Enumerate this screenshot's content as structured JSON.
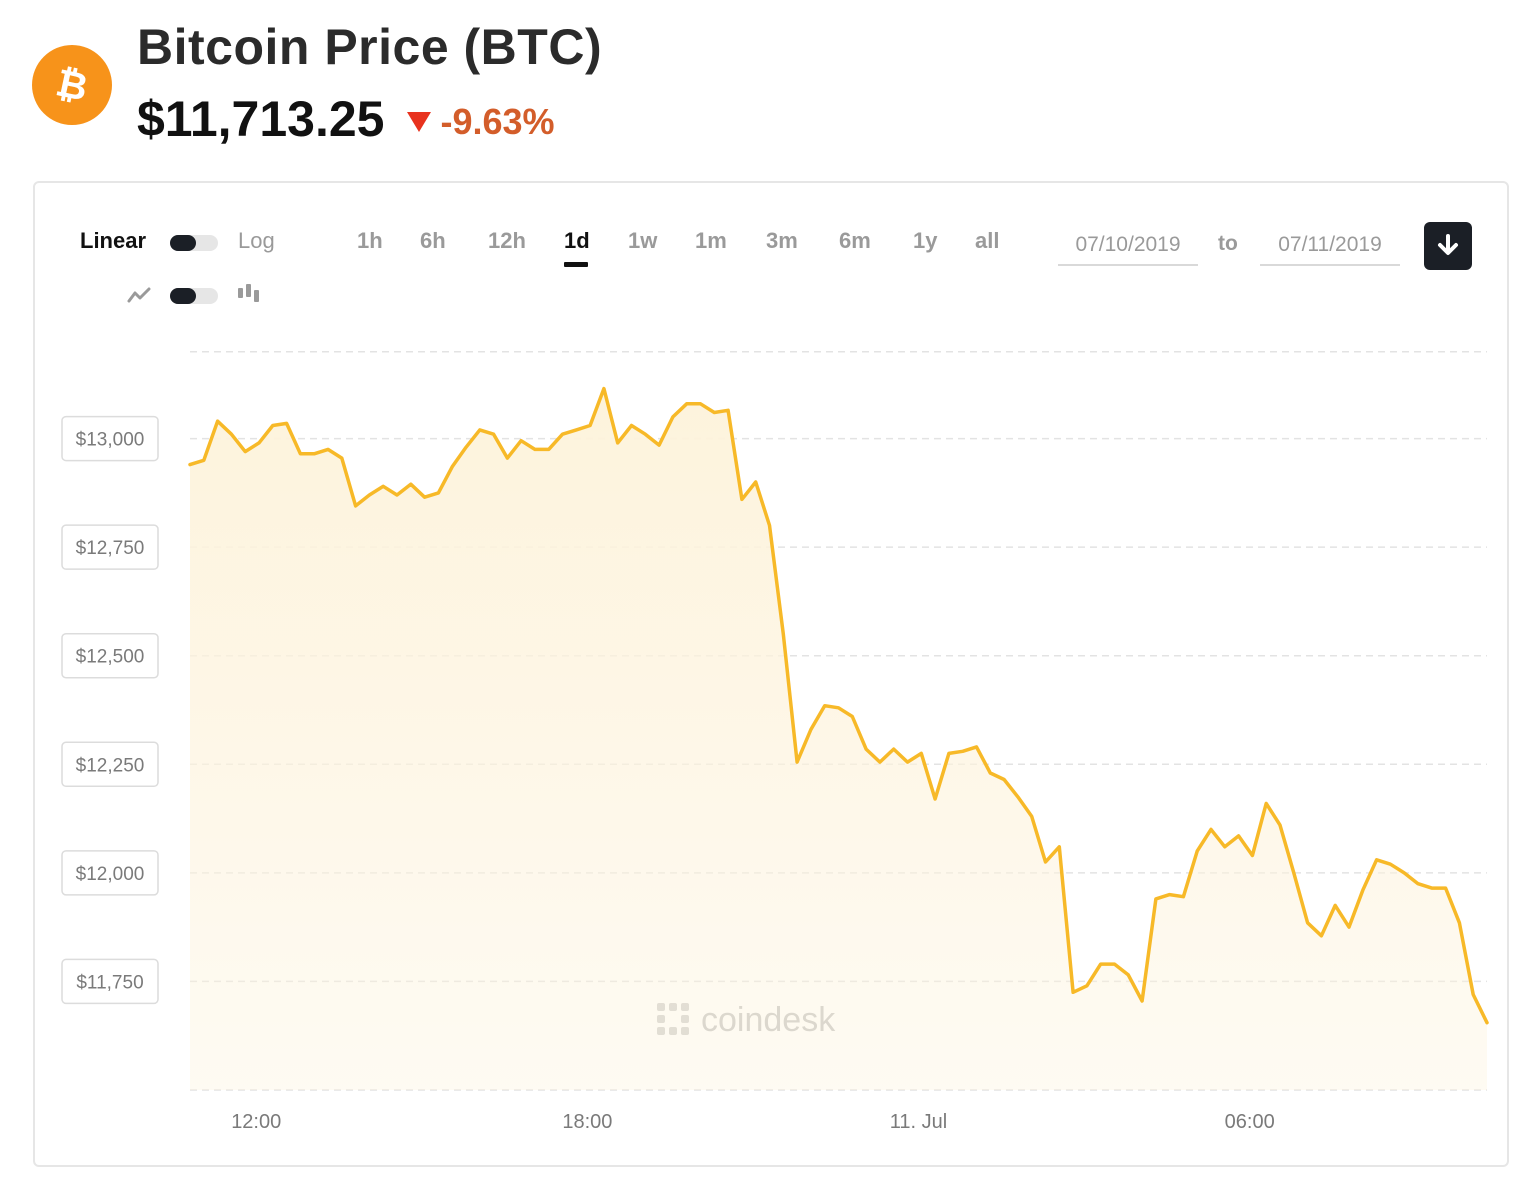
{
  "header": {
    "title": "Bitcoin Price (BTC)",
    "price": "$11,713.25",
    "change": "-9.63%",
    "logo_icon": "bitcoin-icon",
    "logo_color": "#f7931a",
    "change_color": "#d35d2a",
    "arrow_color": "#e8321e"
  },
  "controls": {
    "scale_left": "Linear",
    "scale_right": "Log",
    "chart_type_left_icon": "line-chart-icon",
    "chart_type_right_icon": "candlestick-icon",
    "ranges": [
      "1h",
      "6h",
      "12h",
      "1d",
      "1w",
      "1m",
      "3m",
      "6m",
      "1y",
      "all"
    ],
    "active_range": "1d",
    "date_from": "07/10/2019",
    "to_label": "to",
    "date_to": "07/11/2019",
    "download_icon": "download-arrow-icon"
  },
  "watermark": "coindesk",
  "chart_data": {
    "type": "area",
    "xlabel": "",
    "ylabel": "",
    "line_color": "#f7b928",
    "fill_color": "#fdf3dc",
    "grid": "horizontal dashed",
    "x_hours_range": [
      10.8,
      34.3
    ],
    "ylim": [
      11500,
      13250
    ],
    "y_ticks": [
      {
        "value": 13000,
        "label": "$13,000"
      },
      {
        "value": 12750,
        "label": "$12,750"
      },
      {
        "value": 12500,
        "label": "$12,500"
      },
      {
        "value": 12250,
        "label": "$12,250"
      },
      {
        "value": 12000,
        "label": "$12,000"
      },
      {
        "value": 11750,
        "label": "$11,750"
      }
    ],
    "x_ticks": [
      {
        "value": 12,
        "label": "12:00"
      },
      {
        "value": 18,
        "label": "18:00"
      },
      {
        "value": 24,
        "label": "11. Jul"
      },
      {
        "value": 30,
        "label": "06:00"
      }
    ],
    "x": [
      10.8,
      11.05,
      11.3,
      11.55,
      11.8,
      12.05,
      12.3,
      12.55,
      12.8,
      13.05,
      13.3,
      13.55,
      13.8,
      14.05,
      14.3,
      14.55,
      14.8,
      15.05,
      15.3,
      15.55,
      15.8,
      16.05,
      16.3,
      16.55,
      16.8,
      17.05,
      17.3,
      17.55,
      17.8,
      18.05,
      18.3,
      18.55,
      18.8,
      19.05,
      19.3,
      19.55,
      19.8,
      20.05,
      20.3,
      20.55,
      20.8,
      21.05,
      21.3,
      21.55,
      21.8,
      22.05,
      22.3,
      22.55,
      22.8,
      23.05,
      23.3,
      23.55,
      23.8,
      24.05,
      24.3,
      24.55,
      24.8,
      25.05,
      25.3,
      25.55,
      25.8,
      26.05,
      26.3,
      26.55,
      26.8,
      27.05,
      27.3,
      27.55,
      27.8,
      28.05,
      28.3,
      28.55,
      28.8,
      29.05,
      29.3,
      29.55,
      29.8,
      30.05,
      30.3,
      30.55,
      30.8,
      31.05,
      31.3,
      31.55,
      31.8,
      32.05,
      32.3,
      32.55,
      32.8,
      33.05,
      33.3,
      33.55,
      33.8,
      34.05,
      34.3
    ],
    "series": [
      {
        "values": [
          12940,
          12950,
          13040,
          13010,
          12970,
          12990,
          13030,
          13035,
          12965,
          12965,
          12975,
          12955,
          12845,
          12870,
          12890,
          12870,
          12895,
          12865,
          12875,
          12935,
          12980,
          13020,
          13010,
          12955,
          12995,
          12975,
          12975,
          13010,
          13020,
          13030,
          13115,
          12990,
          13030,
          13010,
          12985,
          13050,
          13080,
          13080,
          13060,
          13065,
          12860,
          12900,
          12800,
          12550,
          12255,
          12330,
          12385,
          12380,
          12360,
          12285,
          12255,
          12285,
          12255,
          12275,
          12170,
          12275,
          12280,
          12290,
          12230,
          12215,
          12175,
          12130,
          12025,
          12060,
          11725,
          11740,
          11790,
          11790,
          11765,
          11705,
          11940,
          11950,
          11945,
          12050,
          12100,
          12060,
          12085,
          12040,
          12160,
          12110,
          12000,
          11885,
          11855,
          11925,
          11875,
          11960,
          12030,
          12020,
          12000,
          11975,
          11965,
          11965,
          11885,
          11720,
          11655
        ]
      }
    ]
  }
}
